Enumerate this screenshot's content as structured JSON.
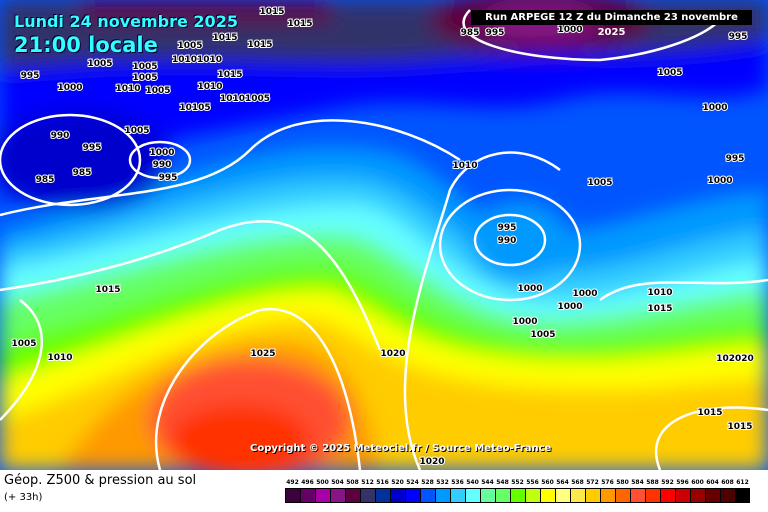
{
  "header": {
    "date": "Lundi 24 novembre 2025",
    "local_time": "21:00 locale",
    "run": "Run ARPEGE 12 Z du Dimanche 23 novembre 2025"
  },
  "copyright": "Copyright © 2025 Meteociel.fr / Source Meteo-France",
  "footer": {
    "title": "Géop. Z500 & pression au sol",
    "subtitle": "(+ 33h)"
  },
  "legend": {
    "labels": [
      "492",
      "496",
      "500",
      "504",
      "508",
      "512",
      "516",
      "520",
      "524",
      "528",
      "532",
      "536",
      "540",
      "544",
      "548",
      "552",
      "556",
      "560",
      "564",
      "568",
      "572",
      "576",
      "580",
      "584",
      "588",
      "592",
      "596",
      "600",
      "604",
      "608",
      "612"
    ],
    "colors": [
      "#3f003f",
      "#660066",
      "#a800a8",
      "#861686",
      "#5e003e",
      "#33336a",
      "#003399",
      "#0000cc",
      "#0000ff",
      "#0055ff",
      "#0099ff",
      "#33ccff",
      "#66ffff",
      "#66ff99",
      "#66ff66",
      "#66ff00",
      "#c0ff10",
      "#ffff00",
      "#ffff80",
      "#ffe84a",
      "#ffcc00",
      "#ff9900",
      "#ff6600",
      "#ff5033",
      "#ff3300",
      "#ff0000",
      "#cc0000",
      "#990000",
      "#660000",
      "#4d0000",
      "#000000"
    ]
  },
  "pressure_labels": [
    "1015",
    "1015",
    "1005",
    "1005",
    "1015",
    "1015",
    "995",
    "1000",
    "1005",
    "1005",
    "10101010",
    "1015",
    "1010",
    "1005",
    "10105",
    "1010",
    "10101005",
    "990",
    "995",
    "1005",
    "1000",
    "990",
    "985",
    "985",
    "995",
    "985",
    "995",
    "1000",
    "995",
    "1005",
    "1000",
    "995",
    "1000",
    "1010",
    "1005",
    "995",
    "990",
    "1015",
    "1000",
    "1000",
    "1000",
    "1010",
    "1015",
    "1005",
    "1000",
    "1005",
    "1010",
    "1025",
    "1020",
    "102020",
    "1015",
    "1015",
    "1020"
  ]
}
